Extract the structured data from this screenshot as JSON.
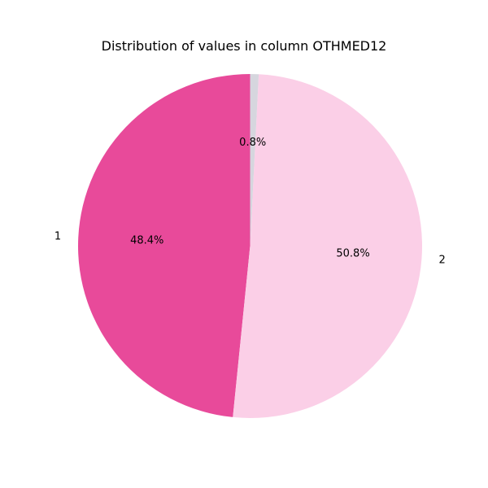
{
  "chart_data": {
    "type": "pie",
    "title": "Distribution of values in column OTHMED12",
    "slices": [
      {
        "label": "1",
        "value": 48.4,
        "pct_label": "48.4%",
        "color": "#e84a9a"
      },
      {
        "label": "2",
        "value": 50.8,
        "pct_label": "50.8%",
        "color": "#fbcfe7"
      },
      {
        "label": "",
        "value": 0.8,
        "pct_label": "0.8%",
        "color": "#d6d6de"
      }
    ],
    "start_angle_deg": 90,
    "direction": "counterclockwise"
  }
}
